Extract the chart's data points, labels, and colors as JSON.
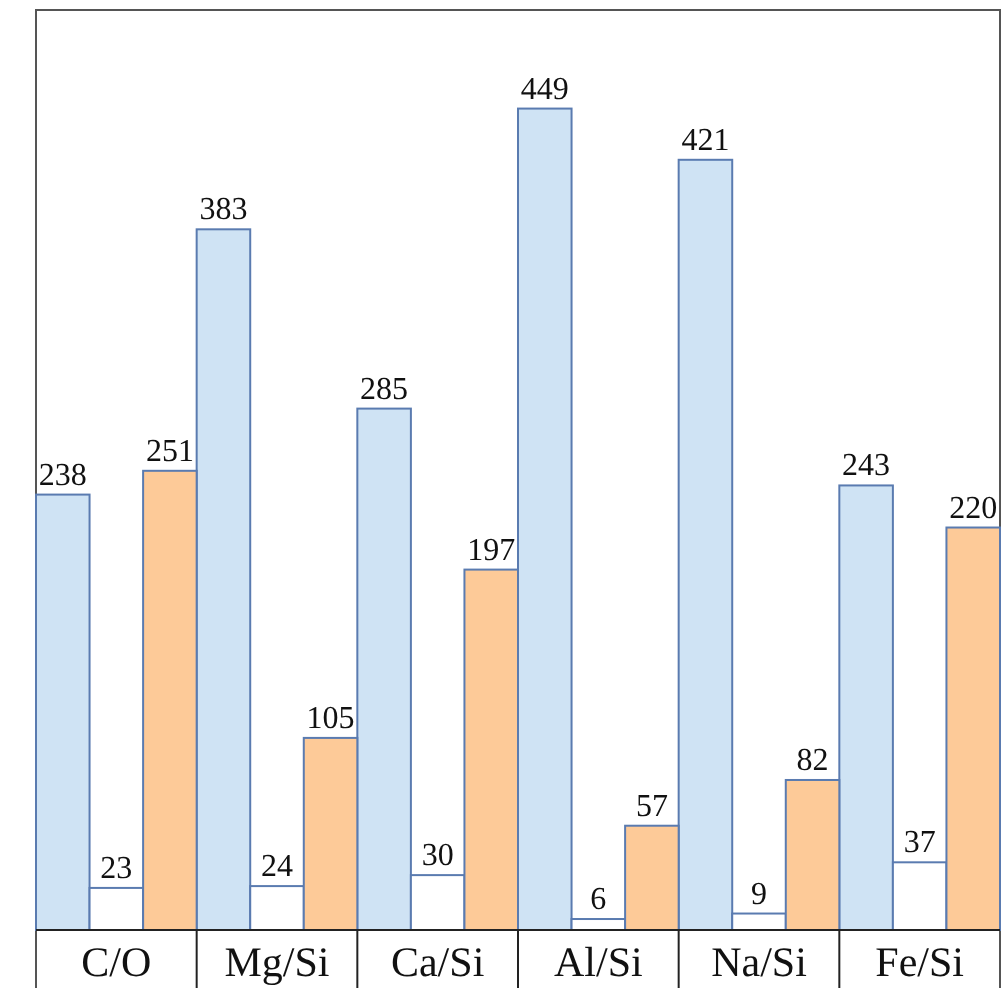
{
  "chart_data": {
    "type": "bar",
    "categories": [
      "C/O",
      "Mg/Si",
      "Ca/Si",
      "Al/Si",
      "Na/Si",
      "Fe/Si"
    ],
    "series": [
      {
        "color": "#cfe3f4",
        "values": [
          238,
          383,
          285,
          449,
          421,
          243
        ]
      },
      {
        "color": "#ffffff",
        "values": [
          23,
          24,
          30,
          6,
          9,
          37
        ]
      },
      {
        "color": "#fdca98",
        "values": [
          251,
          105,
          197,
          57,
          82,
          220
        ]
      }
    ],
    "data_labels": true
  }
}
